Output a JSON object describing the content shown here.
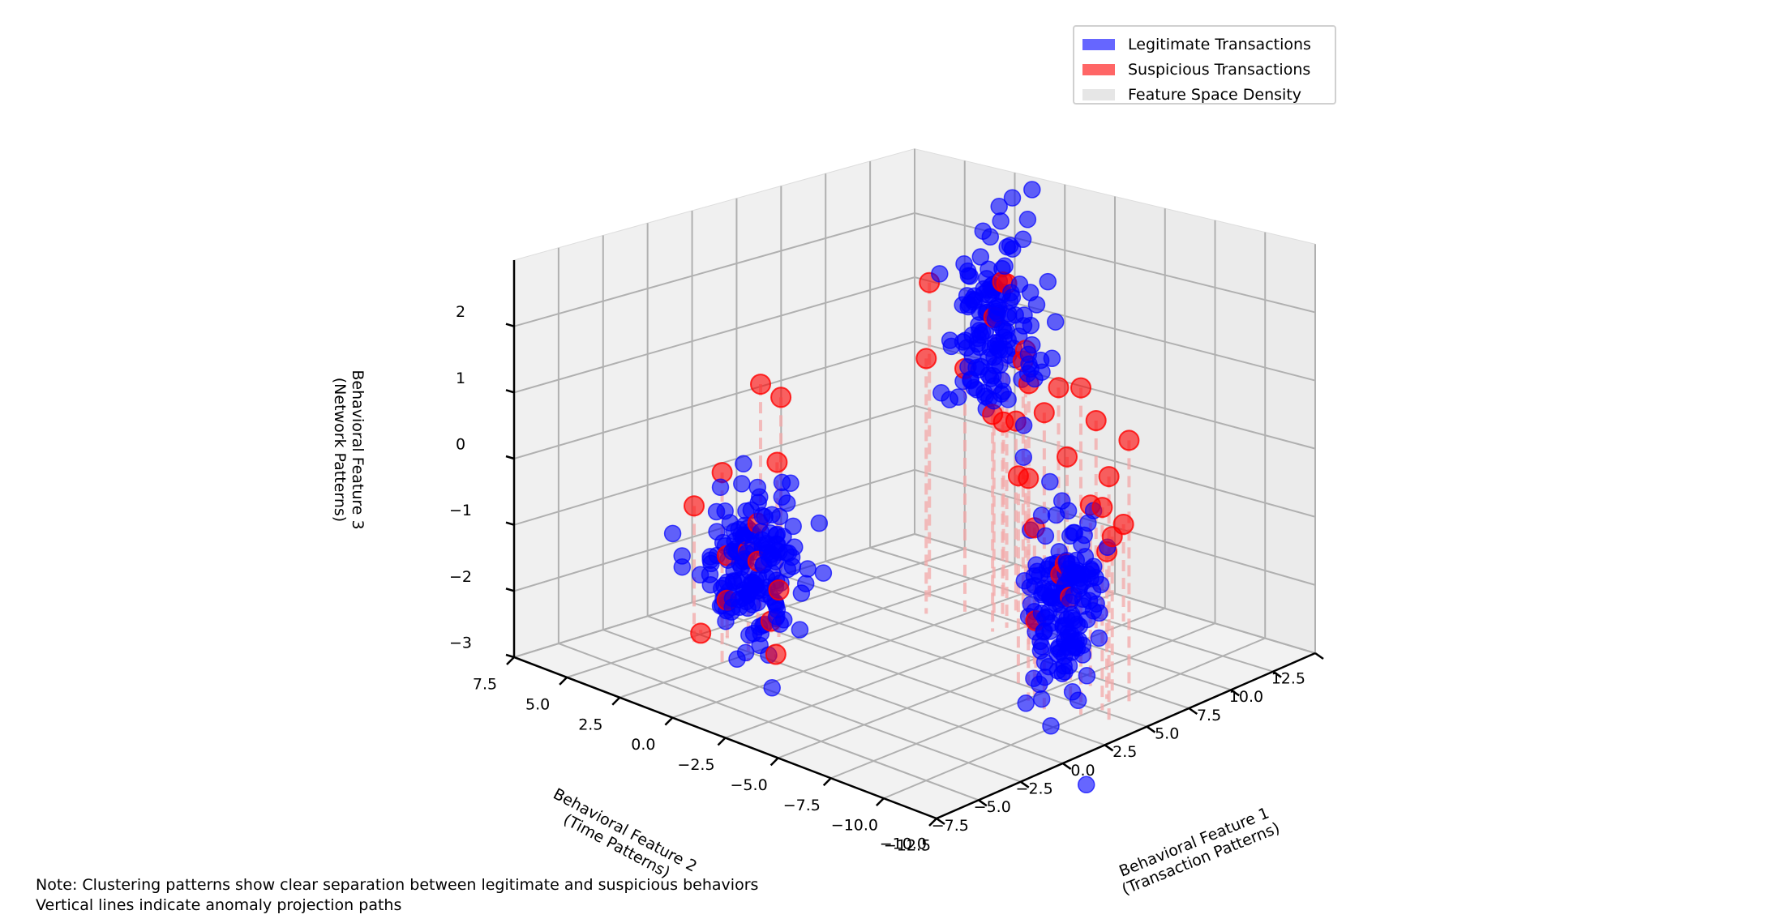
{
  "chart_data": {
    "type": "scatter",
    "projection": "3d",
    "view": {
      "elevation": 20,
      "azimuth": 45
    },
    "axes": {
      "x": {
        "label": "Behavioral Feature 1\n(Transaction Patterns)",
        "range": [
          -12.5,
          7.5
        ],
        "ticks": [
          -12.5,
          -10.0,
          -7.5,
          -5.0,
          -2.5,
          0.0,
          2.5,
          5.0,
          7.5
        ],
        "tick_labels": [
          "−12.5",
          "−10.0",
          "−7.5",
          "−5.0",
          "−2.5",
          "0.0",
          "2.5",
          "5.0",
          "7.5"
        ]
      },
      "y": {
        "label": "Behavioral Feature 2\n(Time Patterns)",
        "range": [
          -10.0,
          12.5
        ],
        "ticks": [
          -10.0,
          -7.5,
          -5.0,
          -2.5,
          0.0,
          2.5,
          5.0,
          7.5,
          10.0,
          12.5
        ],
        "tick_labels": [
          "−10.0",
          "−7.5",
          "−5.0",
          "−2.5",
          "0.0",
          "2.5",
          "5.0",
          "7.5",
          "10.0",
          "12.5"
        ]
      },
      "z": {
        "label": "Behavioral Feature 3\n(Network Patterns)",
        "range": [
          -3,
          3
        ],
        "ticks": [
          -3,
          -2,
          -1,
          0,
          1,
          2
        ],
        "tick_labels": [
          "−3",
          "−2",
          "−1",
          "0",
          "1",
          "2"
        ]
      }
    },
    "grid": true,
    "legend_position": "top-right",
    "legend": [
      {
        "label": "Legitimate Transactions",
        "color": "#6666ff"
      },
      {
        "label": "Suspicious Transactions",
        "color": "#ff6666"
      },
      {
        "label": "Feature Space Density",
        "color": "#e6e6e6"
      }
    ],
    "series": [
      {
        "name": "Legitimate Transactions",
        "color": "#0000ff",
        "alpha": 0.6,
        "clusters": [
          {
            "x": -2,
            "y": 6,
            "z": 1.6,
            "std": [
              0.8,
              1.0,
              0.7
            ],
            "n": 140
          },
          {
            "x": 2,
            "y": -3,
            "z": -1.7,
            "std": [
              0.9,
              1.0,
              0.6
            ],
            "n": 160
          },
          {
            "x": -9,
            "y": 2,
            "z": -1.5,
            "std": [
              0.8,
              0.8,
              0.7
            ],
            "n": 150
          }
        ]
      },
      {
        "name": "Suspicious Transactions",
        "color": "#ff0000",
        "alpha": 0.6,
        "drop_lines": true,
        "points": [
          {
            "x": -2.0,
            "y": 6.6,
            "z": 2.2
          },
          {
            "x": -2.8,
            "y": 5.9,
            "z": 2.3
          },
          {
            "x": -1.4,
            "y": 6.8,
            "z": 1.6
          },
          {
            "x": -2.5,
            "y": 7.2,
            "z": 1.0
          },
          {
            "x": -3.3,
            "y": 6.4,
            "z": 1.3
          },
          {
            "x": -1.0,
            "y": 5.6,
            "z": 0.9
          },
          {
            "x": -4.5,
            "y": 6.9,
            "z": 0.8
          },
          {
            "x": -5.5,
            "y": 7.9,
            "z": 0.3
          },
          {
            "x": -1.8,
            "y": 7.6,
            "z": 0.0
          },
          {
            "x": -3.9,
            "y": 8.1,
            "z": -0.4
          },
          {
            "x": -2.7,
            "y": 5.2,
            "z": 0.4
          },
          {
            "x": -4.9,
            "y": 4.7,
            "z": 1.1
          },
          {
            "x": 1.0,
            "y": 5.9,
            "z": 2.0
          },
          {
            "x": 0.3,
            "y": 4.9,
            "z": 1.0
          },
          {
            "x": -0.5,
            "y": 8.4,
            "z": -0.2
          },
          {
            "x": 2.1,
            "y": -2.6,
            "z": -1.0
          },
          {
            "x": 2.9,
            "y": -3.4,
            "z": -1.5
          },
          {
            "x": 1.6,
            "y": -2.0,
            "z": -2.0
          },
          {
            "x": 3.5,
            "y": -2.7,
            "z": -2.3
          },
          {
            "x": 1.3,
            "y": -4.1,
            "z": -1.2
          },
          {
            "x": 2.4,
            "y": -1.5,
            "z": -2.6
          },
          {
            "x": 3.9,
            "y": -4.1,
            "z": -0.8
          },
          {
            "x": 0.9,
            "y": -3.0,
            "z": -2.8
          },
          {
            "x": 3.2,
            "y": -1.3,
            "z": -1.8
          },
          {
            "x": 4.6,
            "y": -2.9,
            "z": -2.9
          },
          {
            "x": 1.8,
            "y": -5.0,
            "z": 0.0
          },
          {
            "x": 2.7,
            "y": -0.8,
            "z": -0.3
          },
          {
            "x": -8.6,
            "y": 2.4,
            "z": -1.0
          },
          {
            "x": -9.6,
            "y": 1.5,
            "z": -1.3
          },
          {
            "x": -8.1,
            "y": 1.2,
            "z": -0.4
          },
          {
            "x": -10.3,
            "y": 2.8,
            "z": -0.7
          },
          {
            "x": -7.5,
            "y": 2.0,
            "z": -1.9
          },
          {
            "x": -9.0,
            "y": 3.4,
            "z": -0.2
          },
          {
            "x": -10.9,
            "y": 1.8,
            "z": 0.1
          },
          {
            "x": -8.3,
            "y": 0.6,
            "z": 0.4
          },
          {
            "x": -11.3,
            "y": 2.9,
            "z": 1.0
          },
          {
            "x": -9.4,
            "y": 0.2,
            "z": 1.5
          },
          {
            "x": -10.6,
            "y": 0.9,
            "z": 1.9
          },
          {
            "x": -7.8,
            "y": 3.1,
            "z": -1.3
          },
          {
            "x": -11.8,
            "y": 1.1,
            "z": 0.7
          },
          {
            "x": -9.9,
            "y": 3.6,
            "z": -0.6
          },
          {
            "x": -6.9,
            "y": 1.7,
            "z": 0.2
          },
          {
            "x": 3.5,
            "y": -0.8,
            "z": 0.8
          },
          {
            "x": -5.5,
            "y": 9.5,
            "z": -1.4
          },
          {
            "x": 5.6,
            "y": 2.8,
            "z": 0.1
          }
        ]
      },
      {
        "name": "Feature Space Density",
        "color": "#e6e6e6",
        "alpha": 0.3,
        "points": []
      }
    ]
  },
  "note": {
    "line1": "Note: Clustering patterns show clear separation between legitimate and suspicious behaviors",
    "line2": "Vertical lines indicate anomaly projection paths"
  }
}
